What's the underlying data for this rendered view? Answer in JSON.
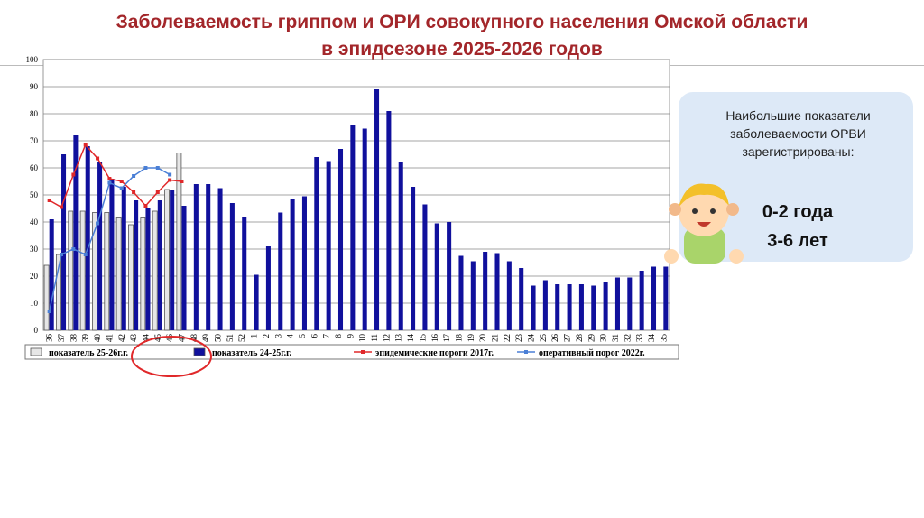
{
  "slide": {
    "title_line1": "Заболеваемость гриппом и ОРИ совокупного населения Омской области",
    "title_line2": "в эпидсезоне 2025-2026 годов",
    "info_text": "Наибольшие показатели заболеваемости ОРВИ зарегистрированы:",
    "age1": "0-2 года",
    "age2": "3-6 лет"
  },
  "chart_data": {
    "type": "bar",
    "categories": [
      "36",
      "37",
      "38",
      "39",
      "40",
      "41",
      "42",
      "43",
      "44",
      "45",
      "46",
      "47",
      "48",
      "49",
      "50",
      "51",
      "52",
      "1",
      "2",
      "3",
      "4",
      "5",
      "6",
      "7",
      "8",
      "9",
      "10",
      "11",
      "12",
      "13",
      "14",
      "15",
      "16",
      "17",
      "18",
      "19",
      "20",
      "21",
      "22",
      "23",
      "24",
      "25",
      "26",
      "27",
      "28",
      "29",
      "30",
      "31",
      "32",
      "33",
      "34",
      "35"
    ],
    "ylim": [
      0,
      100
    ],
    "yticks": [
      0,
      10,
      20,
      30,
      40,
      50,
      60,
      70,
      80,
      90,
      100
    ],
    "grid": true,
    "series": [
      {
        "name": "показатель 25-26г.г.",
        "type": "bar",
        "color": "#e6e6e6",
        "values": [
          24,
          28,
          44,
          44,
          43.5,
          43.5,
          41.5,
          39,
          41.5,
          44,
          52,
          65.5,
          null,
          null,
          null,
          null,
          null,
          null,
          null,
          null,
          null,
          null,
          null,
          null,
          null,
          null,
          null,
          null,
          null,
          null,
          null,
          null,
          null,
          null,
          null,
          null,
          null,
          null,
          null,
          null,
          null,
          null,
          null,
          null,
          null,
          null,
          null,
          null,
          null,
          null,
          null,
          null
        ]
      },
      {
        "name": "показатель 24-25г.г.",
        "type": "bar",
        "color": "#10109c",
        "values": [
          41,
          65,
          72,
          68,
          62,
          56,
          53,
          48,
          45,
          48,
          52,
          46,
          54,
          54,
          52.5,
          47,
          42,
          20.5,
          31,
          43.5,
          48.5,
          49.5,
          64,
          62.5,
          67,
          76,
          74.5,
          89,
          81,
          62,
          53,
          46.5,
          39.5,
          40,
          27.5,
          25.5,
          29,
          28.5,
          25.5,
          23,
          16.5,
          18.5,
          17,
          17,
          17,
          16.5,
          18,
          19.5,
          19.5,
          22,
          23.5,
          23.5
        ]
      },
      {
        "name": "эпидемические пороги 2017г.",
        "type": "line",
        "color": "#e0282a",
        "values": [
          48,
          45.5,
          57.5,
          68.5,
          63.5,
          56,
          55,
          51,
          46,
          51,
          55.5,
          55,
          null,
          null,
          null,
          null,
          null,
          null,
          null,
          null,
          null,
          null,
          null,
          null,
          null,
          null,
          null,
          null,
          null,
          null,
          null,
          null,
          null,
          null,
          null,
          null,
          null,
          null,
          null,
          null,
          null,
          null,
          null,
          null,
          null,
          null,
          null,
          null,
          null,
          null,
          null,
          null
        ]
      },
      {
        "name": "оперативный порог 2022г.",
        "type": "line",
        "color": "#4a7fd6",
        "values": [
          7,
          28,
          30,
          28,
          39.5,
          54.5,
          52.5,
          57,
          60,
          60,
          57.5,
          null,
          null,
          null,
          null,
          null,
          null,
          null,
          null,
          null,
          null,
          null,
          null,
          null,
          null,
          null,
          null,
          null,
          null,
          null,
          null,
          null,
          null,
          null,
          null,
          null,
          null,
          null,
          null,
          null,
          null,
          null,
          null,
          null,
          null,
          null,
          null,
          null,
          null,
          null,
          null,
          null
        ]
      }
    ]
  }
}
